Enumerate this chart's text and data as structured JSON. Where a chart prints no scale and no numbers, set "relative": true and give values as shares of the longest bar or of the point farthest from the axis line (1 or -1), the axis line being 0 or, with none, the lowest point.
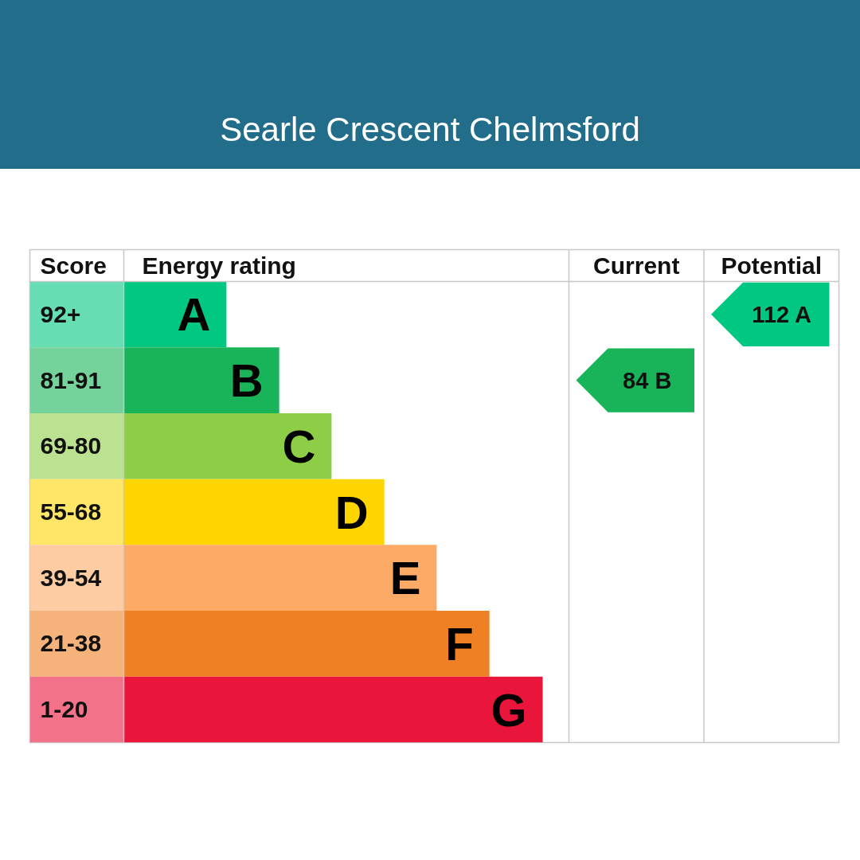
{
  "chart_data": {
    "type": "bar",
    "orientation": "horizontal",
    "relative": true,
    "title": "Searle Crescent Chelmsford",
    "ylabel": "Score",
    "xlabel": "Energy rating",
    "categories": [
      "92+",
      "81-91",
      "69-80",
      "55-68",
      "39-54",
      "21-38",
      "1-20"
    ],
    "values": [
      0.245,
      0.371,
      0.496,
      0.622,
      0.747,
      0.873,
      1
    ],
    "colors": [
      "#00c781",
      "#19b459",
      "#8dce46",
      "#ffd500",
      "#fcaa65",
      "#ef8023",
      "#e9153b"
    ],
    "annotations": [
      "Current",
      "Potential",
      "84 B",
      "112 A",
      {
        "text": "A",
        "x": 0.245,
        "y": "92+"
      },
      {
        "text": "B",
        "x": 0.371,
        "y": "81-91"
      },
      {
        "text": "C",
        "x": 0.496,
        "y": "69-80"
      },
      {
        "text": "D",
        "x": 0.622,
        "y": "55-68"
      },
      {
        "text": "E",
        "x": 0.747,
        "y": "39-54"
      },
      {
        "text": "F",
        "x": 0.873,
        "y": "21-38"
      },
      {
        "text": "G",
        "x": 1,
        "y": "1-20"
      }
    ]
  }
}
